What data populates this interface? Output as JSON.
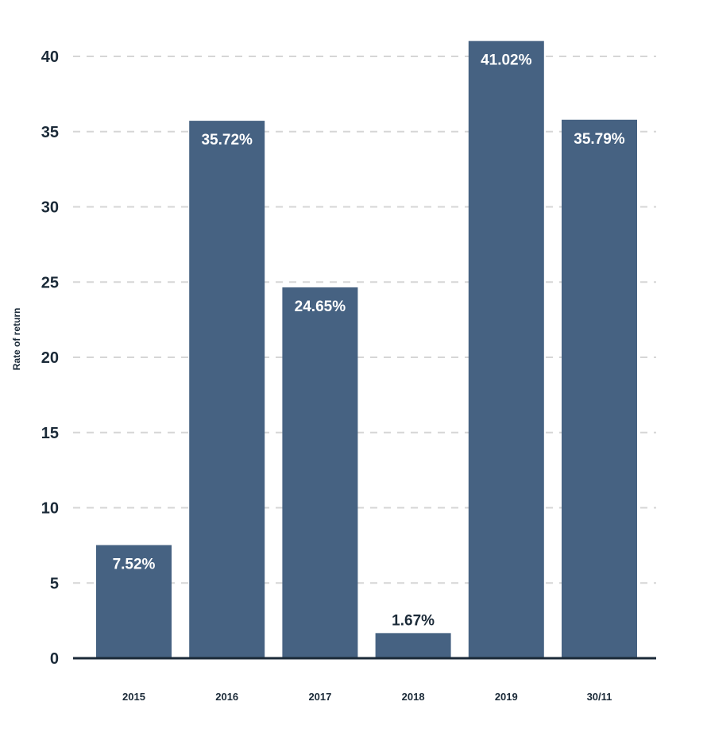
{
  "chart_data": {
    "type": "bar",
    "categories": [
      "2015",
      "2016",
      "2017",
      "2018",
      "2019",
      "30/11"
    ],
    "values": [
      7.52,
      35.72,
      24.65,
      1.67,
      41.02,
      35.79
    ],
    "data_labels": [
      "7.52%",
      "35.72%",
      "24.65%",
      "1.67%",
      "41.02%",
      "35.79%"
    ],
    "title": "",
    "xlabel": "",
    "ylabel": "Rate of return",
    "ylim": [
      0,
      40
    ],
    "yticks": [
      0,
      5,
      10,
      15,
      20,
      25,
      30,
      35,
      40
    ],
    "grid": true,
    "legend": "none"
  },
  "colors": {
    "bar": "#466282",
    "axis": "#1b2a38",
    "grid": "#d6d6d6",
    "label_inside": "#ffffff",
    "label_outside": "#1b2a38"
  }
}
